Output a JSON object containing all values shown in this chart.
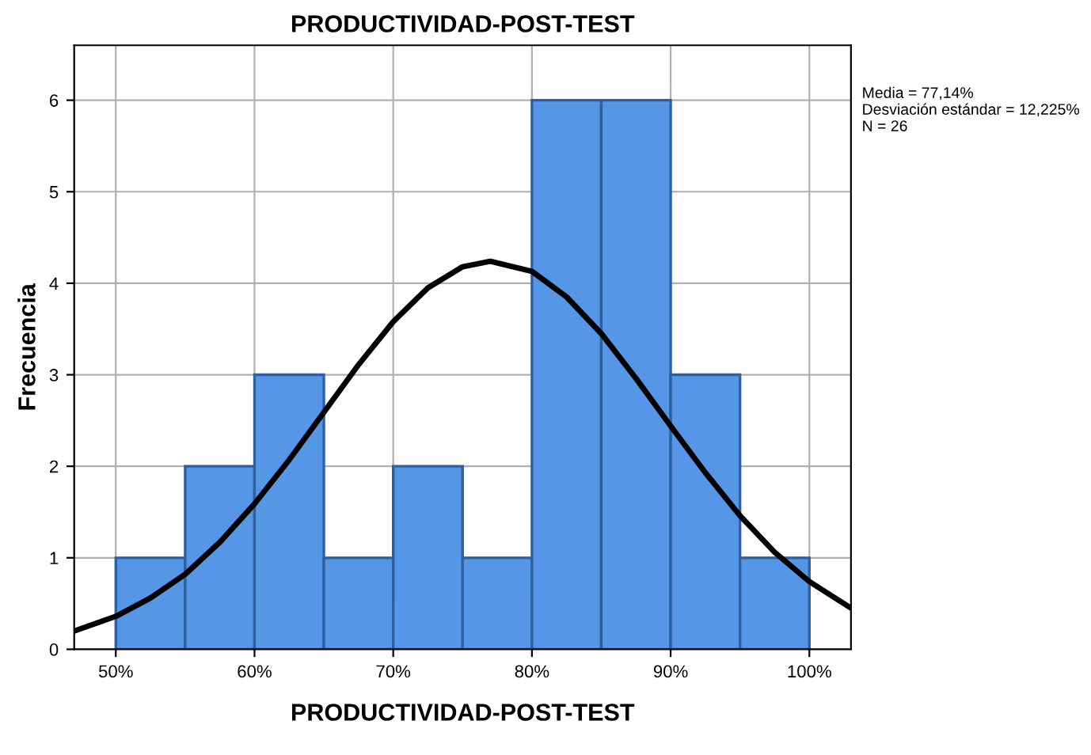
{
  "chart_data": {
    "type": "histogram",
    "title": "PRODUCTIVIDAD-POST-TEST",
    "xlabel": "PRODUCTIVIDAD-POST-TEST",
    "ylabel": "Frecuencia",
    "bins": [
      50,
      55,
      60,
      65,
      70,
      75,
      80,
      85,
      90,
      95,
      100
    ],
    "values": [
      1,
      2,
      3,
      1,
      2,
      1,
      6,
      6,
      3,
      1
    ],
    "color": "#5596e6",
    "series": [
      {
        "type": "line",
        "color": "#000000",
        "x": [
          47,
          50,
          52.5,
          55,
          57.5,
          60,
          62.5,
          65,
          67.5,
          70,
          72.5,
          75,
          77,
          80,
          82.5,
          85,
          87.5,
          90,
          92.5,
          95,
          97.5,
          100,
          103
        ],
        "values": [
          0.2,
          0.36,
          0.56,
          0.82,
          1.17,
          1.59,
          2.07,
          2.59,
          3.11,
          3.58,
          3.95,
          4.18,
          4.24,
          4.13,
          3.85,
          3.45,
          2.96,
          2.44,
          1.93,
          1.46,
          1.06,
          0.74,
          0.45
        ]
      }
    ],
    "xlim": [
      47,
      103
    ],
    "ylim": [
      0,
      6.6
    ],
    "xticks": [
      {
        "value": 50,
        "label": "50%"
      },
      {
        "value": 60,
        "label": "60%"
      },
      {
        "value": 70,
        "label": "70%"
      },
      {
        "value": 80,
        "label": "80%"
      },
      {
        "value": 90,
        "label": "90%"
      },
      {
        "value": 100,
        "label": "100%"
      }
    ],
    "yticks": [
      0,
      1,
      2,
      3,
      4,
      5,
      6
    ],
    "grid": true,
    "annotations": [
      "Media = 77,14%",
      "Desviación estándar = 12,225%",
      "N = 26"
    ]
  }
}
